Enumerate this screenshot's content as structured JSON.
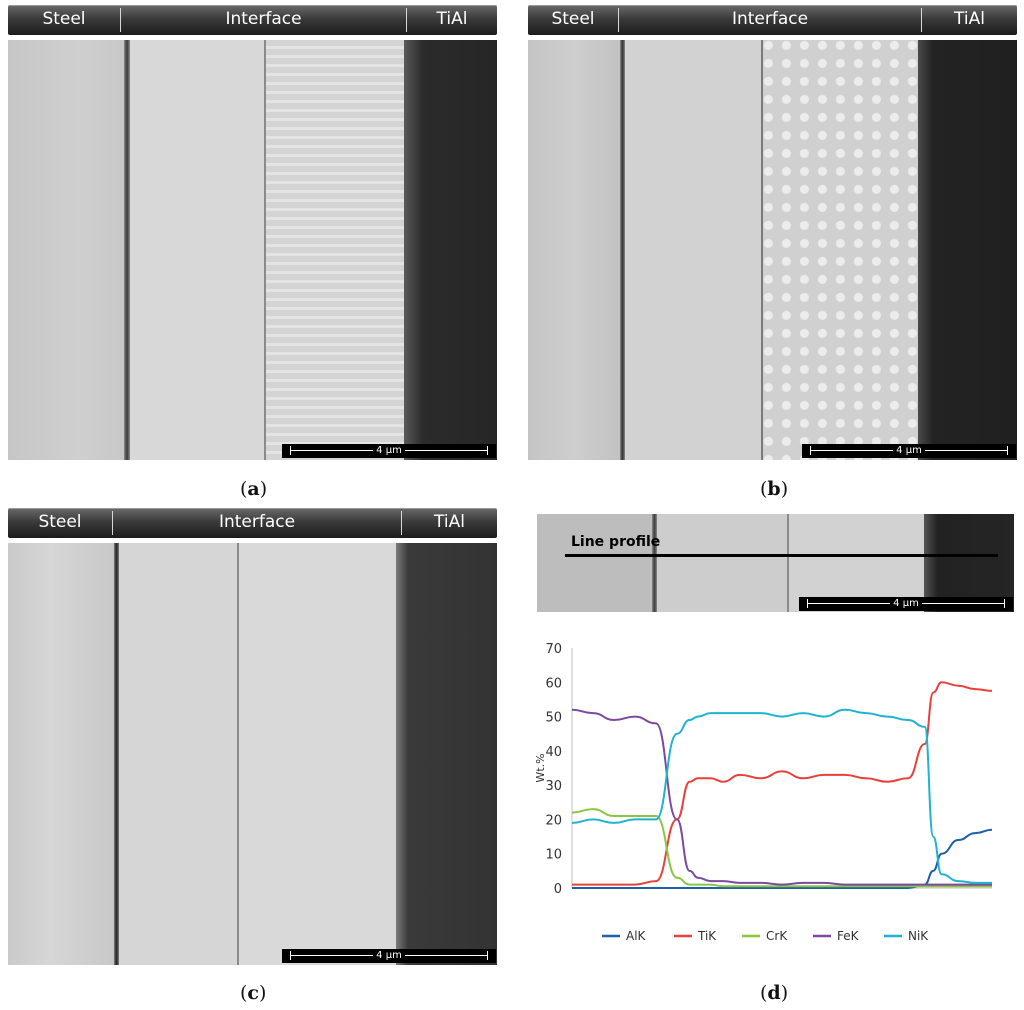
{
  "panels": {
    "a": {
      "caption": "a",
      "header": [
        "Steel",
        "Interface",
        "TiAl"
      ],
      "scale": "4 µm"
    },
    "b": {
      "caption": "b",
      "header": [
        "Steel",
        "Interface",
        "TiAl"
      ],
      "scale": "4 µm"
    },
    "c": {
      "caption": "c",
      "header": [
        "Steel",
        "Interface",
        "TiAl"
      ],
      "scale": "4 µm"
    },
    "d": {
      "caption": "d",
      "line_profile_label": "Line profile",
      "scale": "4 µm"
    }
  },
  "colors": {
    "AlK": "#1f5fa8",
    "TiK": "#e8403a",
    "CrK": "#8cc63f",
    "FeK": "#7b4aa0",
    "NiK": "#1fb3cf"
  },
  "chart_data": {
    "type": "line",
    "title": "",
    "xlabel": "",
    "ylabel": "Wt.%",
    "ylim": [
      0,
      70
    ],
    "yticks": [
      0,
      10,
      20,
      30,
      40,
      50,
      60,
      70
    ],
    "x": [
      0,
      5,
      10,
      15,
      20,
      25,
      28,
      30,
      33,
      36,
      40,
      45,
      50,
      55,
      60,
      65,
      70,
      75,
      80,
      84,
      86,
      88,
      92,
      96,
      100
    ],
    "series": [
      {
        "name": "AlK",
        "values": [
          0,
          0,
          0,
          0,
          0,
          0,
          0,
          0,
          0,
          0,
          0,
          0,
          0,
          0,
          0,
          0,
          0,
          0,
          0,
          1,
          5,
          10,
          14,
          16,
          17
        ]
      },
      {
        "name": "TiK",
        "values": [
          1,
          1,
          1,
          1,
          2,
          20,
          31,
          32,
          32,
          31,
          33,
          32,
          34,
          32,
          33,
          33,
          32,
          31,
          32,
          42,
          57,
          60,
          59,
          58,
          57.5
        ]
      },
      {
        "name": "CrK",
        "values": [
          22,
          23,
          21,
          21,
          21,
          3,
          1,
          1,
          1,
          0.5,
          0.5,
          0.5,
          0.5,
          0.5,
          0.5,
          0.5,
          0.5,
          0.5,
          0.5,
          0.5,
          0.5,
          0.5,
          0.5,
          0.5,
          0.5
        ]
      },
      {
        "name": "FeK",
        "values": [
          52,
          51,
          49,
          50,
          48,
          20,
          5,
          3,
          2,
          2,
          1.5,
          1.5,
          1,
          1.5,
          1.5,
          1,
          1,
          1,
          1,
          1,
          1,
          1,
          1,
          1,
          1
        ]
      },
      {
        "name": "NiK",
        "values": [
          19,
          20,
          19,
          20,
          20,
          45,
          49,
          50,
          51,
          51,
          51,
          51,
          50,
          51,
          50,
          52,
          51,
          50,
          49,
          47,
          15,
          4,
          2,
          1.5,
          1.5
        ]
      }
    ],
    "legend_position": "bottom"
  }
}
